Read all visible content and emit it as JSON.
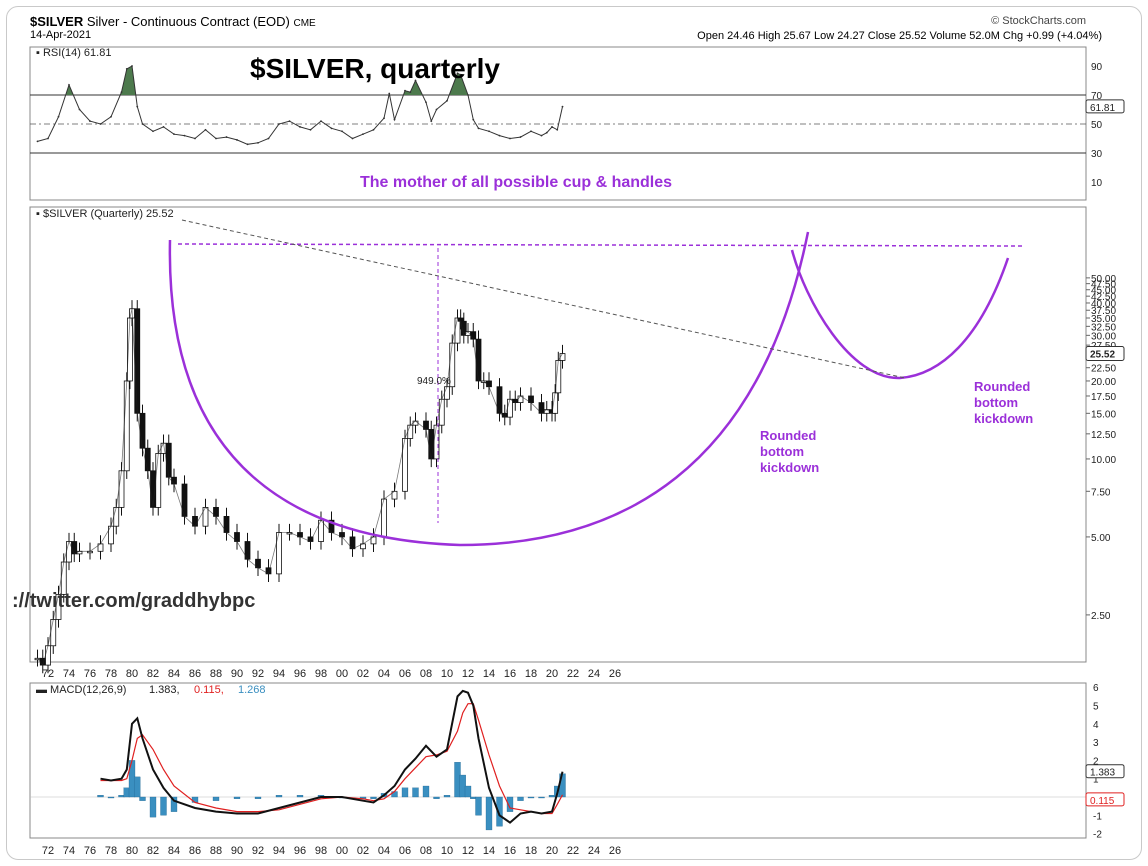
{
  "header": {
    "symbol": "$SILVER",
    "description": "Silver - Continuous Contract (EOD)",
    "exchange": "CME",
    "date": "14-Apr-2021",
    "provider": "© StockCharts.com",
    "ohlc_text": "Open 24.46  High 25.67  Low 24.27  Close 25.52  Volume 52.0M  Chg +0.99 (+4.04%)"
  },
  "annotations": {
    "main_title": "$SILVER, quarterly",
    "subtitle": "The mother of all possible cup & handles",
    "rounded_label_1": [
      "Rounded",
      "bottom",
      "kickdown"
    ],
    "rounded_label_2": [
      "Rounded",
      "bottom",
      "kickdown"
    ],
    "percent_move": "949.0%",
    "watermark": "://twitter.com/graddhybpc"
  },
  "colors": {
    "purple": "#9b30d9",
    "dashed_gray": "#555555",
    "macd_red": "#e02020",
    "macd_hist": "#3a8fc0",
    "rsi_fill": "#4d7a4d"
  },
  "chart_data": [
    {
      "type": "line",
      "panel": "RSI",
      "legend": "RSI(14) 61.81",
      "last_value": "61.81",
      "ylim": [
        0,
        100
      ],
      "yticks": [
        "90",
        "70",
        "50",
        "30",
        "10"
      ],
      "reference_levels": [
        70,
        50,
        30
      ],
      "x": [
        1971,
        1972,
        1973,
        1974,
        1975,
        1976,
        1977,
        1978,
        1979,
        1979.5,
        1980,
        1980.5,
        1981,
        1982,
        1983,
        1984,
        1985,
        1986,
        1987,
        1988,
        1989,
        1990,
        1991,
        1992,
        1993,
        1994,
        1995,
        1996,
        1997,
        1998,
        1999,
        2000,
        2001,
        2002,
        2003,
        2004,
        2004.5,
        2005,
        2006,
        2006.5,
        2007,
        2008,
        2008.5,
        2009,
        2010,
        2011,
        2011.3,
        2012,
        2012.5,
        2013,
        2014,
        2015,
        2016,
        2017,
        2018,
        2019,
        2019.5,
        2020,
        2020.5,
        2021
      ],
      "values": [
        38,
        40,
        55,
        77,
        60,
        52,
        50,
        55,
        72,
        88,
        90,
        62,
        50,
        45,
        48,
        43,
        42,
        40,
        46,
        40,
        41,
        39,
        36,
        37,
        40,
        50,
        52,
        48,
        46,
        52,
        47,
        45,
        40,
        43,
        46,
        54,
        71,
        53,
        73,
        72,
        80,
        65,
        52,
        60,
        66,
        85,
        84,
        70,
        53,
        47,
        45,
        42,
        40,
        41,
        45,
        42,
        44,
        48,
        46,
        62
      ]
    },
    {
      "type": "line",
      "panel": "Price",
      "legend": "$SILVER (Quarterly) 25.52",
      "last_value": "25.52",
      "scale": "log",
      "ylim": [
        1.8,
        50
      ],
      "yticks": [
        "50.00",
        "47.50",
        "45.00",
        "42.50",
        "40.00",
        "37.50",
        "35.00",
        "32.50",
        "30.00",
        "27.50",
        "25.00",
        "22.50",
        "20.00",
        "17.50",
        "15.00",
        "12.50",
        "10.00",
        "7.50",
        "5.00",
        "2.50"
      ],
      "xticks": [
        "72",
        "74",
        "76",
        "78",
        "80",
        "82",
        "84",
        "86",
        "88",
        "90",
        "92",
        "94",
        "96",
        "98",
        "00",
        "02",
        "04",
        "06",
        "08",
        "10",
        "12",
        "14",
        "16",
        "18",
        "20",
        "22",
        "24",
        "26"
      ],
      "x": [
        1971,
        1971.5,
        1972,
        1972.5,
        1973,
        1973.5,
        1974,
        1974.5,
        1975,
        1976,
        1977,
        1978,
        1978.5,
        1979,
        1979.5,
        1979.8,
        1980,
        1980.5,
        1981,
        1981.5,
        1982,
        1982.5,
        1983,
        1983.5,
        1984,
        1985,
        1986,
        1987,
        1988,
        1989,
        1990,
        1991,
        1992,
        1993,
        1994,
        1995,
        1996,
        1997,
        1998,
        1999,
        2000,
        2001,
        2002,
        2003,
        2004,
        2005,
        2006,
        2006.5,
        2007,
        2008,
        2008.5,
        2009,
        2009.5,
        2010,
        2010.5,
        2011,
        2011.3,
        2011.6,
        2012,
        2012.5,
        2013,
        2013.5,
        2014,
        2015,
        2015.5,
        2016,
        2016.5,
        2017,
        2018,
        2019,
        2019.5,
        2020,
        2020.3,
        2020.6,
        2021
      ],
      "values": [
        1.7,
        1.6,
        1.9,
        2.4,
        3.0,
        4.0,
        4.8,
        4.3,
        4.4,
        4.4,
        4.7,
        5.5,
        6.5,
        9.0,
        20,
        35,
        38,
        15,
        11,
        9.0,
        6.5,
        10.5,
        11.5,
        8.5,
        8.0,
        6.0,
        5.5,
        6.5,
        6.0,
        5.2,
        4.8,
        4.1,
        3.8,
        3.6,
        5.2,
        5.2,
        5.0,
        4.8,
        5.8,
        5.2,
        5.0,
        4.5,
        4.7,
        5.0,
        7.0,
        7.5,
        12.0,
        13.5,
        14.0,
        13.0,
        10.0,
        13.5,
        17.0,
        19.0,
        28.0,
        35.0,
        34.0,
        30.0,
        31.0,
        29.0,
        20.0,
        20.0,
        19.0,
        15.0,
        14.5,
        17.0,
        16.5,
        17.5,
        16.5,
        15.0,
        15.5,
        15.0,
        18.0,
        24.0,
        25.52
      ]
    },
    {
      "type": "line",
      "panel": "MACD",
      "legend_label": "MACD(12,26,9)",
      "legend_values": [
        "1.383",
        "0.115",
        "1.268"
      ],
      "ylim": [
        -2.3,
        6.3
      ],
      "yticks": [
        "6",
        "5",
        "4",
        "3",
        "2",
        "1",
        "0",
        "-1",
        "-2"
      ],
      "last_values": [
        "1.383",
        "0.115"
      ],
      "x": [
        1977,
        1978,
        1979,
        1979.5,
        1980,
        1980.5,
        1981,
        1982,
        1983,
        1984,
        1986,
        1988,
        1990,
        1992,
        1994,
        1996,
        1998,
        2000,
        2002,
        2003,
        2004,
        2005,
        2006,
        2007,
        2008,
        2009,
        2010,
        2011,
        2011.5,
        2012,
        2012.5,
        2013,
        2014,
        2015,
        2016,
        2017,
        2018,
        2019,
        2020,
        2020.5,
        2021
      ],
      "series": [
        {
          "name": "MACD",
          "values": [
            1.0,
            0.9,
            1.0,
            1.5,
            4.0,
            4.3,
            3.2,
            1.5,
            0.5,
            -0.2,
            -0.6,
            -0.8,
            -0.9,
            -0.9,
            -0.6,
            -0.3,
            0.0,
            0.0,
            -0.2,
            -0.3,
            0.1,
            0.6,
            1.5,
            2.1,
            2.8,
            2.2,
            2.6,
            5.5,
            5.8,
            5.7,
            5.0,
            3.2,
            0.5,
            -1.0,
            -1.4,
            -0.9,
            -0.8,
            -0.9,
            -0.8,
            0.2,
            1.38
          ]
        },
        {
          "name": "Signal",
          "values": [
            0.9,
            0.9,
            0.9,
            1.0,
            2.0,
            3.2,
            3.4,
            2.6,
            1.5,
            0.6,
            -0.3,
            -0.6,
            -0.8,
            -0.8,
            -0.7,
            -0.4,
            -0.1,
            0.0,
            -0.1,
            -0.2,
            -0.1,
            0.3,
            1.0,
            1.6,
            2.2,
            2.3,
            2.5,
            3.6,
            4.6,
            5.1,
            5.1,
            4.2,
            2.3,
            0.6,
            -0.6,
            -0.7,
            -0.8,
            -0.9,
            -0.9,
            -0.4,
            0.12
          ]
        },
        {
          "name": "Histogram",
          "values": [
            0.1,
            0.0,
            0.1,
            0.5,
            2.0,
            1.1,
            -0.2,
            -1.1,
            -1.0,
            -0.8,
            -0.3,
            -0.2,
            -0.1,
            -0.1,
            0.1,
            0.1,
            0.1,
            0.0,
            -0.1,
            -0.1,
            0.2,
            0.3,
            0.5,
            0.5,
            0.6,
            -0.1,
            0.1,
            1.9,
            1.2,
            0.6,
            -0.1,
            -1.0,
            -1.8,
            -1.6,
            -0.8,
            -0.2,
            0.0,
            0.0,
            0.1,
            0.6,
            1.27
          ]
        }
      ]
    }
  ]
}
